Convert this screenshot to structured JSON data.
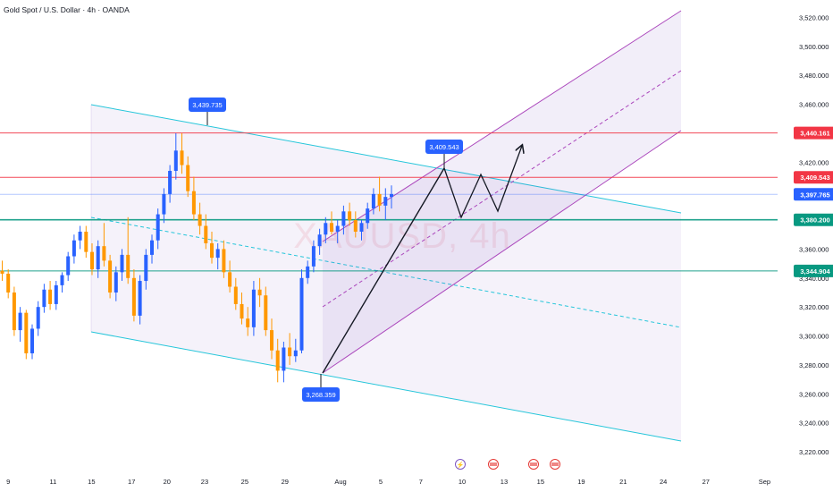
{
  "header": {
    "title": "Gold Spot / U.S. Dollar · 4h · OANDA"
  },
  "watermark": "XAUUSD, 4h",
  "chart_data": {
    "type": "candlestick",
    "title": "Gold Spot / U.S. Dollar · 4h · OANDA",
    "symbol": "XAUUSD",
    "timeframe": "4h",
    "ylim": [
      3210,
      3525
    ],
    "y_ticks": [
      3220,
      3240,
      3260,
      3280,
      3300,
      3320,
      3340,
      3360,
      3380,
      3400,
      3420,
      3440,
      3460,
      3480,
      3500,
      3520
    ],
    "y_tick_labels": [
      "3,220.000",
      "3,240.000",
      "3,260.000",
      "3,280.000",
      "3,300.000",
      "3,320.000",
      "3,340.000",
      "3,360.000",
      "3,380.000",
      "3,400.000",
      "3,420.000",
      "3,440.000",
      "3,460.000",
      "3,480.000",
      "3,500.000",
      "3,520.000"
    ],
    "x_ticks": [
      {
        "label": "9",
        "i": 1
      },
      {
        "label": "11",
        "i": 8.5
      },
      {
        "label": "15",
        "i": 14.9
      },
      {
        "label": "17",
        "i": 21.6
      },
      {
        "label": "20",
        "i": 27.5
      },
      {
        "label": "23",
        "i": 33.8
      },
      {
        "label": "25",
        "i": 40.5
      },
      {
        "label": "29",
        "i": 47.2
      },
      {
        "label": "Aug",
        "i": 56.5
      },
      {
        "label": "5",
        "i": 63.2
      },
      {
        "label": "7",
        "i": 69.9
      },
      {
        "label": "10",
        "i": 76.8
      },
      {
        "label": "13",
        "i": 83.8
      },
      {
        "label": "15",
        "i": 89.9
      },
      {
        "label": "19",
        "i": 96.7
      },
      {
        "label": "21",
        "i": 103.7
      },
      {
        "label": "24",
        "i": 110.4
      },
      {
        "label": "27",
        "i": 117.5
      },
      {
        "label": "Sep",
        "i": 127.3
      }
    ],
    "candle_spacing": 6.7,
    "candles": [
      [
        3345,
        3352,
        3338,
        3343
      ],
      [
        3343,
        3346,
        3326,
        3330
      ],
      [
        3330,
        3334,
        3300,
        3304
      ],
      [
        3304,
        3320,
        3296,
        3316
      ],
      [
        3316,
        3318,
        3284,
        3288
      ],
      [
        3288,
        3308,
        3284,
        3305
      ],
      [
        3305,
        3324,
        3300,
        3320
      ],
      [
        3320,
        3336,
        3316,
        3332
      ],
      [
        3332,
        3338,
        3318,
        3322
      ],
      [
        3322,
        3338,
        3318,
        3335
      ],
      [
        3335,
        3344,
        3330,
        3342
      ],
      [
        3342,
        3358,
        3338,
        3355
      ],
      [
        3355,
        3370,
        3350,
        3366
      ],
      [
        3366,
        3376,
        3360,
        3372
      ],
      [
        3372,
        3376,
        3354,
        3358
      ],
      [
        3358,
        3364,
        3342,
        3346
      ],
      [
        3346,
        3366,
        3340,
        3362
      ],
      [
        3362,
        3378,
        3348,
        3352
      ],
      [
        3352,
        3356,
        3326,
        3330
      ],
      [
        3330,
        3348,
        3324,
        3344
      ],
      [
        3344,
        3360,
        3338,
        3356
      ],
      [
        3356,
        3382,
        3336,
        3340
      ],
      [
        3340,
        3346,
        3310,
        3314
      ],
      [
        3314,
        3342,
        3308,
        3338
      ],
      [
        3338,
        3360,
        3332,
        3356
      ],
      [
        3356,
        3370,
        3350,
        3366
      ],
      [
        3366,
        3388,
        3360,
        3384
      ],
      [
        3384,
        3402,
        3378,
        3398
      ],
      [
        3398,
        3418,
        3392,
        3414
      ],
      [
        3414,
        3440,
        3408,
        3428
      ],
      [
        3428,
        3440,
        3412,
        3418
      ],
      [
        3418,
        3424,
        3396,
        3400
      ],
      [
        3400,
        3410,
        3380,
        3384
      ],
      [
        3384,
        3392,
        3370,
        3376
      ],
      [
        3376,
        3384,
        3360,
        3364
      ],
      [
        3364,
        3372,
        3350,
        3354
      ],
      [
        3354,
        3364,
        3346,
        3360
      ],
      [
        3360,
        3366,
        3340,
        3344
      ],
      [
        3344,
        3352,
        3330,
        3334
      ],
      [
        3334,
        3340,
        3318,
        3322
      ],
      [
        3322,
        3330,
        3308,
        3312
      ],
      [
        3312,
        3320,
        3300,
        3306
      ],
      [
        3306,
        3338,
        3300,
        3332
      ],
      [
        3332,
        3340,
        3320,
        3328
      ],
      [
        3328,
        3334,
        3300,
        3304
      ],
      [
        3304,
        3312,
        3284,
        3290
      ],
      [
        3290,
        3298,
        3268,
        3276
      ],
      [
        3276,
        3296,
        3268,
        3292
      ],
      [
        3292,
        3302,
        3280,
        3286
      ],
      [
        3286,
        3298,
        3282,
        3290
      ],
      [
        3290,
        3346,
        3288,
        3340
      ],
      [
        3340,
        3352,
        3336,
        3348
      ],
      [
        3348,
        3366,
        3344,
        3362
      ],
      [
        3362,
        3374,
        3356,
        3370
      ],
      [
        3370,
        3382,
        3364,
        3378
      ],
      [
        3378,
        3386,
        3370,
        3372
      ],
      [
        3372,
        3380,
        3364,
        3376
      ],
      [
        3376,
        3390,
        3370,
        3386
      ],
      [
        3386,
        3392,
        3376,
        3380
      ],
      [
        3380,
        3386,
        3368,
        3372
      ],
      [
        3372,
        3380,
        3366,
        3378
      ],
      [
        3378,
        3392,
        3374,
        3388
      ],
      [
        3388,
        3402,
        3384,
        3398
      ],
      [
        3398,
        3410,
        3386,
        3390
      ],
      [
        3390,
        3402,
        3380,
        3396
      ],
      [
        3396,
        3404,
        3388,
        3398
      ]
    ],
    "levels": [
      {
        "label": "3,440.161",
        "value": 3440.161,
        "color": "#f23645"
      },
      {
        "label": "3,409.543",
        "value": 3409.543,
        "color": "#f23645"
      },
      {
        "label": "3,397.765",
        "value": 3397.765,
        "color": "#2962ff"
      },
      {
        "label": "3,380.200",
        "value": 3380.2,
        "color": "#089981"
      },
      {
        "label": "3,344.904",
        "value": 3344.904,
        "color": "#089981"
      }
    ],
    "annotations": [
      {
        "label": "3,439.735",
        "value": 3439.735
      },
      {
        "label": "3,409.543",
        "value": 3409.543
      },
      {
        "label": "3,268.359",
        "value": 3268.359
      }
    ],
    "colors": {
      "up": "#2962ff",
      "down": "#ff9800",
      "channel_down": "#26c6da",
      "channel_up": "#ab47bc",
      "resistance": "#f23645",
      "support": "#089981",
      "text": "#131722"
    },
    "grid": false
  }
}
